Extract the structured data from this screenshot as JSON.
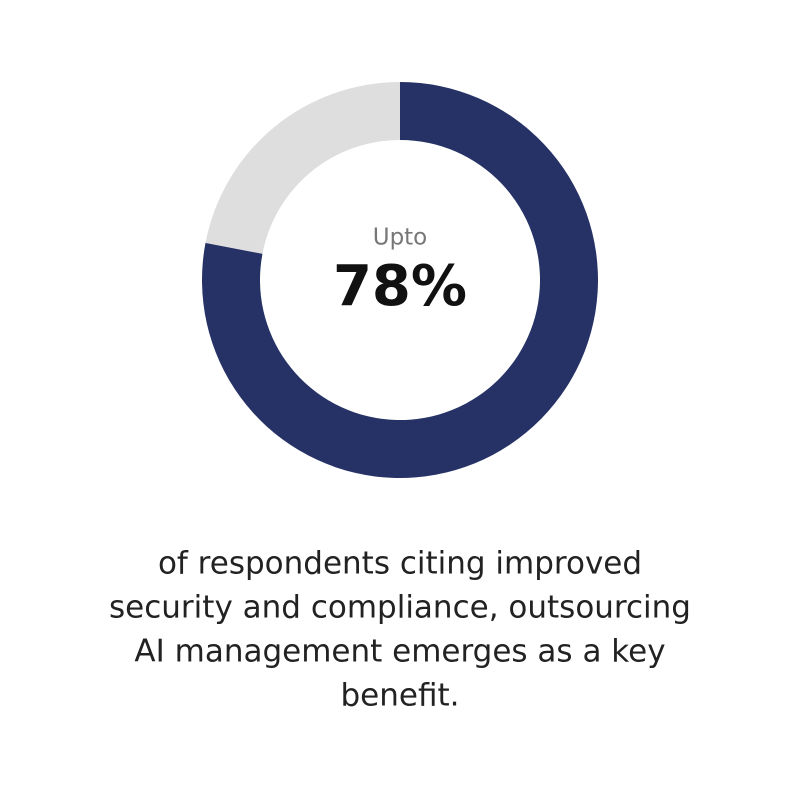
{
  "chart_data": {
    "type": "donut",
    "values": [
      78,
      22
    ],
    "value_labels": [
      "78%",
      null
    ],
    "colors": [
      "#263266",
      "#dedede"
    ],
    "center_text": "Upto",
    "caption": [
      "of respondents citing improved",
      "security and compliance, outsourcing",
      "AI management emerges as a key",
      "benefit."
    ]
  }
}
